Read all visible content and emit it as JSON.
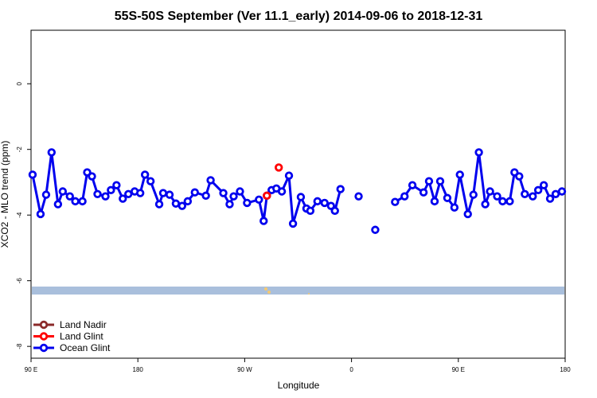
{
  "chart_data": {
    "type": "line",
    "title": "55S-50S September (Ver 11.1_early)   2014-09-06 to 2018-12-31",
    "xlabel": "Longitude",
    "ylabel": "XCO2 - MLO trend (ppm)",
    "xlim": [
      90,
      540
    ],
    "ylim": [
      -8.36,
      1.63
    ],
    "xticks": [
      {
        "value": 90,
        "label": "90 E"
      },
      180,
      {
        "value": 270,
        "label": "90 W"
      },
      {
        "value": 360,
        "label": "0"
      },
      {
        "value": 450,
        "label": "90 E"
      },
      {
        "value": 540,
        "label": "180"
      }
    ],
    "yticks": [
      0,
      -2,
      -4,
      -6,
      -8
    ],
    "legend": "bottom-left",
    "series": [
      {
        "name": "Land Nadir",
        "color": "#8b2a2a",
        "x": [],
        "values": []
      },
      {
        "name": "Land Glint",
        "color": "#ff0000",
        "x": [
          298.7,
          288.7
        ],
        "values": [
          -2.55,
          -3.41
        ]
      },
      {
        "name": "Ocean Glint",
        "color": "#0000ee",
        "x": [
          91.3,
          98,
          102.7,
          107.3,
          112.7,
          116.7,
          122.7,
          127.3,
          133.3,
          137.3,
          141.3,
          146,
          152.7,
          157.3,
          162,
          167.3,
          172,
          177.3,
          182,
          186,
          190.7,
          198,
          201.3,
          206.7,
          212,
          217.3,
          222,
          228,
          237.3,
          241.3,
          252,
          257.3,
          260.7,
          266,
          272,
          282,
          286,
          288.7,
          292.7,
          296.7,
          301.3,
          307.3,
          310.7,
          317.3,
          322,
          325.3,
          331.3,
          337.3,
          342.7,
          346,
          350.7,
          null,
          366,
          null,
          380,
          null,
          396.7,
          404.7,
          411.3,
          420.7,
          425.3,
          430,
          434.7,
          440.7,
          446.7,
          451.3,
          458,
          462.7,
          467.3,
          472.7,
          476.7,
          482.7,
          487.3,
          493.3,
          497.3,
          501.3,
          506,
          512.7,
          517.3,
          522,
          527.3,
          532,
          537.3
        ],
        "values": [
          -2.77,
          -3.97,
          -3.38,
          -2.09,
          -3.67,
          -3.28,
          -3.43,
          -3.58,
          -3.58,
          -2.7,
          -2.82,
          -3.36,
          -3.43,
          -3.24,
          -3.09,
          -3.5,
          -3.36,
          -3.28,
          -3.33,
          -2.77,
          -2.97,
          -3.67,
          -3.33,
          -3.38,
          -3.65,
          -3.72,
          -3.58,
          -3.31,
          -3.41,
          -2.94,
          -3.33,
          -3.67,
          -3.43,
          -3.28,
          -3.63,
          -3.53,
          -4.18,
          -3.41,
          -3.24,
          -3.19,
          -3.28,
          -2.8,
          -4.26,
          -3.45,
          -3.8,
          -3.87,
          -3.58,
          -3.63,
          -3.72,
          -3.87,
          -3.21,
          null,
          -3.43,
          null,
          -4.45,
          null,
          -3.6,
          -3.43,
          -3.09,
          -3.31,
          -2.97,
          -3.58,
          -2.97,
          -3.48,
          -3.77,
          -2.77,
          -3.97,
          -3.38,
          -2.09,
          -3.67,
          -3.28,
          -3.43,
          -3.58,
          -3.58,
          -2.7,
          -2.82,
          -3.36,
          -3.43,
          -3.24,
          -3.09,
          -3.5,
          -3.36,
          -3.28
        ]
      }
    ]
  }
}
